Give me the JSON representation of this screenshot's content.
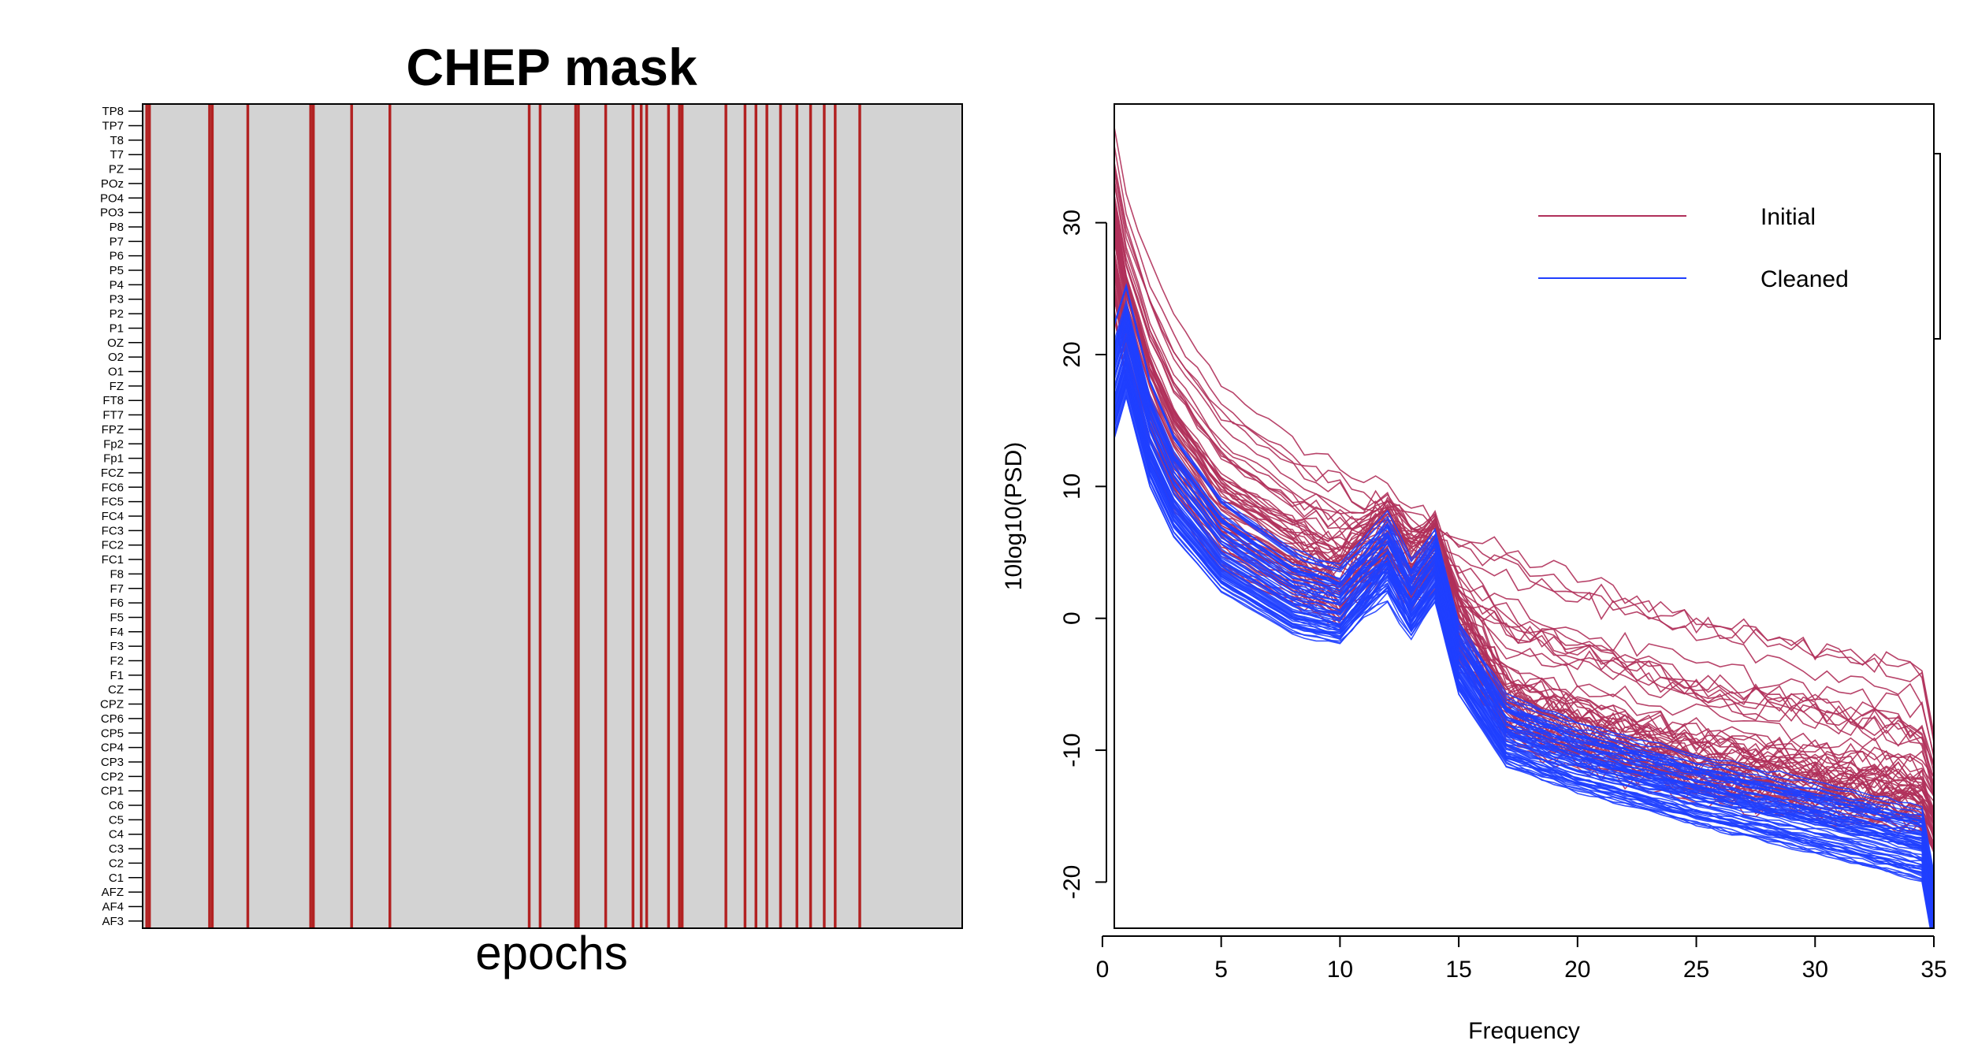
{
  "chart_data": [
    {
      "type": "heatmap",
      "title": "CHEP mask",
      "xlabel": "epochs",
      "ylabel": "",
      "channels": [
        "TP8",
        "TP7",
        "T8",
        "T7",
        "PZ",
        "POz",
        "PO4",
        "PO3",
        "P8",
        "P7",
        "P6",
        "P5",
        "P4",
        "P3",
        "P2",
        "P1",
        "OZ",
        "O2",
        "O1",
        "FZ",
        "FT8",
        "FT7",
        "FPZ",
        "Fp2",
        "Fp1",
        "FCZ",
        "FC6",
        "FC5",
        "FC4",
        "FC3",
        "FC2",
        "FC1",
        "F8",
        "F7",
        "F6",
        "F5",
        "F4",
        "F3",
        "F2",
        "F1",
        "CZ",
        "CPZ",
        "CP6",
        "CP5",
        "CP4",
        "CP3",
        "CP2",
        "CP1",
        "C6",
        "C5",
        "C4",
        "C3",
        "C2",
        "C1",
        "AFZ",
        "AF4",
        "AF3"
      ],
      "n_epochs": 300,
      "flagged_epochs": [
        1,
        2,
        24,
        25,
        38,
        61,
        62,
        76,
        90,
        141,
        145,
        158,
        159,
        169,
        179,
        182,
        184,
        192,
        196,
        197,
        213,
        220,
        224,
        228,
        233,
        239,
        244,
        249,
        253,
        262
      ],
      "colors": {
        "clean": "#d3d3d3",
        "flagged": "#b22222"
      },
      "grid": false
    },
    {
      "type": "line",
      "title": "",
      "xlabel": "Frequency",
      "ylabel": "10log10(PSD)",
      "xlim": [
        0.5,
        35
      ],
      "ylim": [
        -23.5,
        39
      ],
      "xticks": [
        0,
        5,
        10,
        15,
        20,
        25,
        30,
        35
      ],
      "yticks": [
        -20,
        -10,
        0,
        10,
        20,
        30
      ],
      "grid": false,
      "legend_position": "top-right",
      "series": [
        {
          "name": "Initial",
          "color": "#b0305a",
          "line_count": 64
        },
        {
          "name": "Cleaned",
          "color": "#1f3fff",
          "line_count": 64
        }
      ],
      "typical_curves": {
        "initial_clean_like": {
          "x": [
            0.5,
            1,
            2,
            3,
            5,
            8,
            10,
            12,
            13,
            14,
            15,
            17,
            20,
            25,
            30,
            34.5,
            35
          ],
          "y": [
            27,
            22,
            16,
            12,
            7,
            4,
            2.5,
            6,
            3.5,
            5,
            -1,
            -7,
            -9,
            -11.5,
            -13,
            -14,
            -16
          ]
        },
        "initial_high_artifact": {
          "x": [
            0.5,
            1,
            2,
            3,
            5,
            8,
            10,
            12,
            15,
            20,
            25,
            30,
            34.5,
            35
          ],
          "y": [
            36,
            31,
            26,
            22,
            17,
            13,
            11,
            9,
            6,
            3,
            0,
            -2,
            -4,
            -9
          ]
        },
        "cleaned_typical": {
          "x": [
            0.5,
            1,
            2,
            3,
            5,
            8,
            10,
            12,
            13,
            14,
            15,
            17,
            20,
            25,
            30,
            34.5,
            35
          ],
          "y": [
            18,
            21,
            14,
            10,
            5.5,
            2,
            1,
            5,
            1.5,
            4,
            -3,
            -8.5,
            -10.5,
            -13,
            -15,
            -17,
            -22
          ]
        }
      }
    }
  ]
}
